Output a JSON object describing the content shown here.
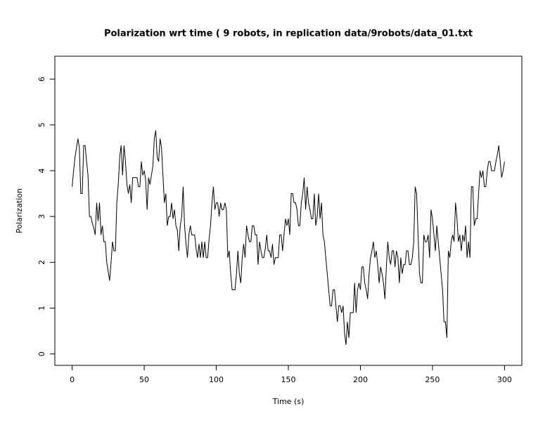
{
  "chart_data": {
    "type": "line",
    "title": "Polarization wrt time ( 9 robots, in replication  data/9robots/data_01.txt",
    "x_label": "Time (s)",
    "y_label": "Polarization",
    "xlim": [
      -12,
      312
    ],
    "ylim": [
      -0.25,
      6.5
    ],
    "xticks": [
      0,
      50,
      100,
      150,
      200,
      250,
      300
    ],
    "yticks": [
      0,
      1,
      2,
      3,
      4,
      5,
      6
    ],
    "grid": false,
    "series": [
      {
        "name": "Polarization",
        "color": "#000000",
        "x": [
          0,
          1,
          2,
          3,
          4,
          5,
          6,
          7,
          8,
          9,
          10,
          11,
          12,
          13,
          14,
          15,
          16,
          17,
          18,
          19,
          20,
          21,
          22,
          23,
          24,
          25,
          26,
          27,
          28,
          29,
          30,
          31,
          32,
          33,
          34,
          35,
          36,
          37,
          38,
          39,
          40,
          41,
          42,
          43,
          44,
          45,
          46,
          47,
          48,
          49,
          50,
          51,
          52,
          53,
          54,
          55,
          56,
          57,
          58,
          59,
          60,
          61,
          62,
          63,
          64,
          65,
          66,
          67,
          68,
          69,
          70,
          71,
          72,
          73,
          74,
          75,
          76,
          77,
          78,
          79,
          80,
          81,
          82,
          83,
          84,
          85,
          86,
          87,
          88,
          89,
          90,
          91,
          92,
          93,
          94,
          95,
          96,
          97,
          98,
          99,
          100,
          101,
          102,
          103,
          104,
          105,
          106,
          107,
          108,
          109,
          110,
          111,
          112,
          113,
          114,
          115,
          116,
          117,
          118,
          119,
          120,
          121,
          122,
          123,
          124,
          125,
          126,
          127,
          128,
          129,
          130,
          131,
          132,
          133,
          134,
          135,
          136,
          137,
          138,
          139,
          140,
          141,
          142,
          143,
          144,
          145,
          146,
          147,
          148,
          149,
          150,
          151,
          152,
          153,
          154,
          155,
          156,
          157,
          158,
          159,
          160,
          161,
          162,
          163,
          164,
          165,
          166,
          167,
          168,
          169,
          170,
          171,
          172,
          173,
          174,
          175,
          176,
          177,
          178,
          179,
          180,
          181,
          182,
          183,
          184,
          185,
          186,
          187,
          188,
          189,
          190,
          191,
          192,
          193,
          194,
          195,
          196,
          197,
          198,
          199,
          200,
          201,
          202,
          203,
          204,
          205,
          206,
          207,
          208,
          209,
          210,
          211,
          212,
          213,
          214,
          215,
          216,
          217,
          218,
          219,
          220,
          221,
          222,
          223,
          224,
          225,
          226,
          227,
          228,
          229,
          230,
          231,
          232,
          233,
          234,
          235,
          236,
          237,
          238,
          239,
          240,
          241,
          242,
          243,
          244,
          245,
          246,
          247,
          248,
          249,
          250,
          251,
          252,
          253,
          254,
          255,
          256,
          257,
          258,
          259,
          260,
          261,
          262,
          263,
          264,
          265,
          266,
          267,
          268,
          269,
          270,
          271,
          272,
          273,
          274,
          275,
          276,
          277,
          278,
          279,
          280,
          281,
          282,
          283,
          284,
          285,
          286,
          287,
          288,
          289,
          290,
          291,
          292,
          293,
          294,
          295,
          296,
          297,
          298,
          299,
          300
        ],
        "values": [
          3.65,
          4.0,
          4.3,
          4.5,
          4.7,
          4.5,
          3.5,
          3.5,
          4.55,
          4.55,
          4.2,
          3.9,
          3.0,
          3.0,
          2.85,
          2.75,
          2.6,
          3.3,
          2.9,
          3.3,
          2.6,
          2.8,
          2.45,
          2.45,
          2.0,
          1.8,
          1.6,
          2.0,
          2.45,
          2.25,
          2.25,
          3.3,
          3.7,
          4.3,
          4.55,
          3.9,
          4.55,
          4.2,
          3.7,
          3.5,
          3.7,
          3.3,
          3.85,
          3.85,
          3.85,
          3.85,
          3.65,
          3.65,
          4.2,
          3.9,
          4.0,
          3.8,
          3.15,
          3.85,
          3.7,
          3.9,
          4.1,
          4.7,
          4.88,
          4.3,
          4.2,
          4.7,
          4.5,
          3.9,
          3.3,
          3.5,
          2.8,
          3.0,
          3.0,
          3.3,
          2.95,
          3.15,
          2.8,
          2.7,
          2.25,
          2.8,
          3.0,
          3.65,
          2.8,
          2.4,
          2.1,
          2.6,
          2.8,
          2.6,
          2.6,
          2.6,
          2.3,
          2.1,
          2.4,
          2.1,
          2.45,
          2.1,
          2.45,
          2.1,
          2.1,
          2.5,
          2.8,
          3.3,
          3.65,
          3.15,
          3.3,
          3.3,
          3.0,
          3.3,
          3.15,
          3.15,
          3.3,
          3.15,
          2.1,
          2.25,
          1.75,
          1.4,
          1.4,
          1.4,
          1.75,
          2.25,
          1.75,
          1.55,
          2.1,
          2.4,
          2.1,
          2.8,
          2.6,
          2.45,
          2.45,
          2.8,
          2.8,
          2.6,
          2.6,
          1.95,
          2.45,
          2.25,
          2.1,
          2.1,
          2.3,
          2.6,
          2.25,
          2.25,
          2.1,
          2.4,
          1.95,
          2.1,
          2.1,
          2.1,
          2.6,
          2.6,
          2.25,
          2.6,
          2.95,
          2.8,
          2.95,
          2.6,
          3.5,
          3.5,
          3.3,
          3.3,
          3.15,
          2.8,
          2.8,
          3.3,
          3.5,
          3.85,
          3.15,
          3.65,
          3.3,
          3.15,
          2.95,
          2.95,
          3.5,
          2.8,
          3.0,
          3.5,
          2.95,
          3.3,
          2.6,
          2.45,
          2.1,
          1.75,
          1.4,
          1.05,
          1.05,
          1.4,
          1.4,
          1.05,
          0.7,
          1.05,
          1.05,
          0.9,
          1.05,
          0.45,
          0.2,
          0.7,
          0.35,
          0.9,
          0.9,
          0.9,
          1.55,
          0.9,
          1.4,
          1.55,
          1.4,
          1.9,
          1.9,
          1.55,
          1.4,
          1.2,
          1.75,
          2.1,
          2.25,
          2.45,
          2.1,
          2.25,
          1.95,
          1.55,
          1.9,
          1.75,
          1.55,
          1.2,
          1.9,
          2.45,
          2.1,
          1.95,
          2.25,
          2.25,
          1.9,
          2.25,
          2.1,
          1.55,
          2.1,
          1.75,
          1.95,
          1.95,
          2.25,
          2.25,
          1.95,
          1.95,
          2.1,
          2.45,
          3.65,
          3.5,
          2.6,
          1.75,
          1.55,
          1.55,
          2.6,
          2.45,
          2.45,
          2.6,
          2.1,
          3.15,
          2.95,
          2.6,
          2.25,
          2.8,
          2.45,
          2.1,
          1.75,
          1.4,
          0.7,
          0.7,
          0.35,
          2.25,
          2.1,
          2.45,
          2.6,
          2.45,
          3.3,
          2.95,
          2.45,
          2.6,
          2.25,
          2.6,
          2.45,
          2.8,
          2.1,
          2.45,
          2.1,
          3.65,
          3.65,
          2.8,
          2.95,
          2.95,
          3.5,
          4.0,
          3.85,
          4.0,
          3.65,
          3.65,
          4.0,
          4.2,
          4.2,
          4.0,
          4.0,
          4.0,
          4.2,
          4.35,
          4.55,
          4.2,
          3.85,
          4.0,
          4.2
        ]
      }
    ]
  }
}
